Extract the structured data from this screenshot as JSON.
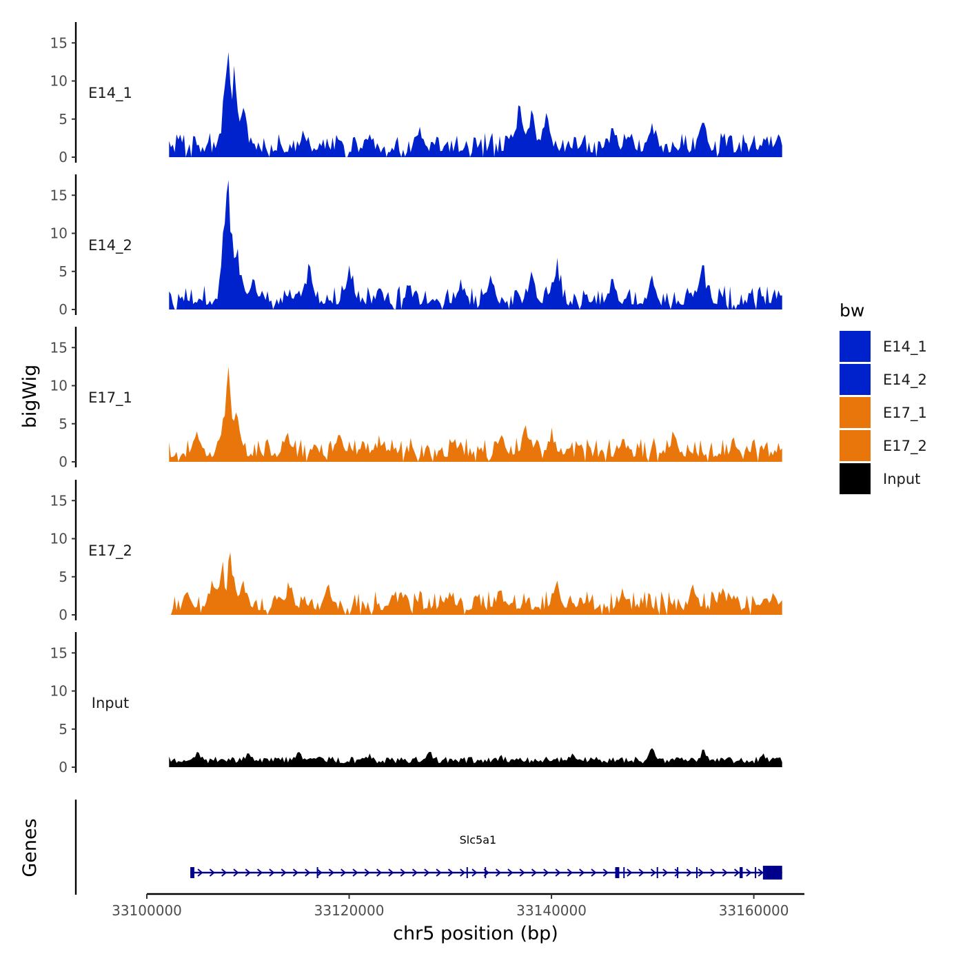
{
  "chart_data": {
    "type": "area",
    "genome": "chr5",
    "x_range": [
      33102200,
      33162800
    ],
    "xlim": [
      33100000,
      33165000
    ],
    "xlabel": "chr5 position (bp)",
    "x_ticks": [
      33100000,
      33120000,
      33140000,
      33160000
    ],
    "x_tick_labels": [
      "33100000",
      "33120000",
      "33140000",
      "33160000"
    ],
    "ylabel": "bigWig",
    "ylim": [
      0,
      17.5
    ],
    "y_ticks": [
      0,
      5,
      10,
      15
    ],
    "y_tick_labels": [
      "0",
      "5",
      "10",
      "15"
    ],
    "series": [
      {
        "name": "E14_1",
        "color": "#0022cc",
        "peaks": [
          [
            33108000,
            13.8
          ],
          [
            33108700,
            12.0
          ],
          [
            33109500,
            6.5
          ],
          [
            33115500,
            3.5
          ],
          [
            33122000,
            3.0
          ],
          [
            33127000,
            4.0
          ],
          [
            33136800,
            6.8
          ],
          [
            33138000,
            6.2
          ],
          [
            33139500,
            5.8
          ],
          [
            33146000,
            3.8
          ],
          [
            33150000,
            4.5
          ],
          [
            33155000,
            4.5
          ],
          [
            33161000,
            2.5
          ],
          [
            33162500,
            3.0
          ]
        ]
      },
      {
        "name": "E14_2",
        "color": "#0022cc",
        "peaks": [
          [
            33108000,
            17.0
          ],
          [
            33109000,
            8.0
          ],
          [
            33110500,
            4.0
          ],
          [
            33116000,
            6.0
          ],
          [
            33120000,
            5.8
          ],
          [
            33123000,
            2.8
          ],
          [
            33131000,
            4.0
          ],
          [
            33134000,
            4.5
          ],
          [
            33138000,
            5.0
          ],
          [
            33140500,
            6.8
          ],
          [
            33146000,
            4.0
          ],
          [
            33150000,
            4.5
          ],
          [
            33155000,
            5.8
          ],
          [
            33162500,
            2.5
          ]
        ]
      },
      {
        "name": "E17_1",
        "color": "#e8760b",
        "peaks": [
          [
            33105000,
            4.0
          ],
          [
            33107500,
            4.5
          ],
          [
            33108000,
            12.5
          ],
          [
            33108800,
            6.5
          ],
          [
            33114000,
            3.8
          ],
          [
            33119000,
            3.5
          ],
          [
            33123000,
            3.5
          ],
          [
            33130500,
            3.0
          ],
          [
            33135000,
            3.5
          ],
          [
            33137500,
            4.8
          ],
          [
            33140000,
            4.5
          ],
          [
            33147000,
            3.0
          ],
          [
            33152000,
            4.0
          ],
          [
            33158000,
            3.2
          ],
          [
            33162500,
            2.5
          ]
        ]
      },
      {
        "name": "E17_2",
        "color": "#e8760b",
        "peaks": [
          [
            33104000,
            3.0
          ],
          [
            33106500,
            4.5
          ],
          [
            33107500,
            7.0
          ],
          [
            33108300,
            8.2
          ],
          [
            33109500,
            4.5
          ],
          [
            33114000,
            4.3
          ],
          [
            33118000,
            4.0
          ],
          [
            33125000,
            2.8
          ],
          [
            33130000,
            3.0
          ],
          [
            33135000,
            3.2
          ],
          [
            33140500,
            4.5
          ],
          [
            33143500,
            2.8
          ],
          [
            33147000,
            3.5
          ],
          [
            33154000,
            4.0
          ],
          [
            33157000,
            3.5
          ],
          [
            33162000,
            2.5
          ]
        ]
      },
      {
        "name": "Input",
        "color": "#000000",
        "peaks": [
          [
            33105000,
            2.0
          ],
          [
            33110000,
            1.8
          ],
          [
            33115000,
            2.0
          ],
          [
            33122000,
            1.8
          ],
          [
            33128000,
            2.0
          ],
          [
            33135000,
            1.6
          ],
          [
            33142000,
            1.8
          ],
          [
            33150000,
            2.5
          ],
          [
            33155000,
            2.3
          ],
          [
            33161000,
            1.8
          ]
        ]
      }
    ],
    "legend": {
      "title": "bw",
      "position": "right",
      "items": [
        {
          "label": "E14_1",
          "color": "#0022cc"
        },
        {
          "label": "E14_2",
          "color": "#0022cc"
        },
        {
          "label": "E17_1",
          "color": "#e8760b"
        },
        {
          "label": "E17_2",
          "color": "#e8760b"
        },
        {
          "label": "Input",
          "color": "#000000"
        }
      ]
    },
    "genes_track": {
      "title": "Genes",
      "gene": "Slc5a1",
      "color": "#00008b",
      "start": 33104300,
      "end": 33162800,
      "strand": "+",
      "exons": [
        [
          33104300,
          33104700
        ],
        [
          33116800,
          33116900
        ],
        [
          33131600,
          33131700
        ],
        [
          33133400,
          33133500
        ],
        [
          33146300,
          33146700
        ],
        [
          33147100,
          33147200
        ],
        [
          33150400,
          33150500
        ],
        [
          33152400,
          33152500
        ],
        [
          33154300,
          33154400
        ],
        [
          33158600,
          33158900
        ],
        [
          33160100,
          33160200
        ],
        [
          33160900,
          33162800
        ]
      ]
    }
  }
}
